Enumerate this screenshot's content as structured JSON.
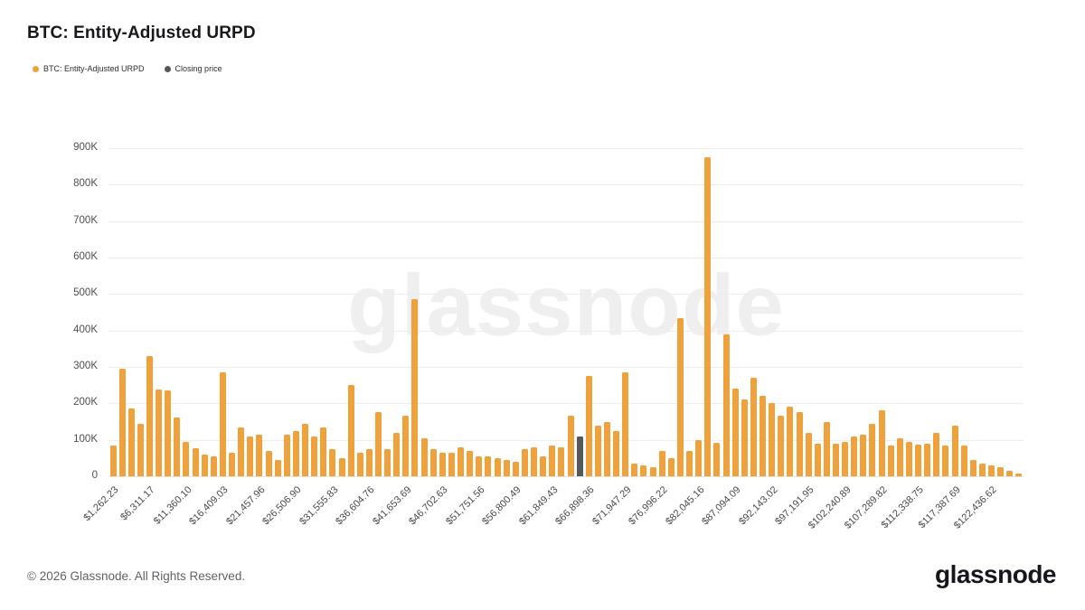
{
  "page": {
    "title": "BTC: Entity-Adjusted URPD",
    "watermark": "glassnode",
    "footer_copyright": "© 2026 Glassnode. All Rights Reserved.",
    "brand_logo_text": "glassnode"
  },
  "legend": [
    {
      "label": "BTC: Entity-Adjusted URPD",
      "color": "#EFA23C"
    },
    {
      "label": "Closing price",
      "color": "#55585c"
    }
  ],
  "colors": {
    "bar_orange": "#EFA23C",
    "closing_price_bar": "#55585c",
    "gridline": "#ededed",
    "axis_text": "#4a4a4a"
  },
  "chart_data": {
    "type": "bar",
    "title": "BTC: Entity-Adjusted URPD",
    "xlabel": "",
    "ylabel": "",
    "ylim": [
      0,
      900000
    ],
    "grid": true,
    "legend_position": "top-left",
    "ymax_k": 900,
    "y_ticks": [
      "0",
      "100K",
      "200K",
      "300K",
      "400K",
      "500K",
      "600K",
      "700K",
      "800K",
      "900K"
    ],
    "y_tick_values_k": [
      0,
      100,
      200,
      300,
      400,
      500,
      600,
      700,
      800,
      900
    ],
    "x_tick_labels": [
      "$1,262.23",
      "$6,311.17",
      "$11,360.10",
      "$16,409.03",
      "$21,457.96",
      "$26,506.90",
      "$31,555.83",
      "$36,604.76",
      "$41,653.69",
      "$46,702.63",
      "$51,751.56",
      "$56,800.49",
      "$61,849.43",
      "$66,898.36",
      "$71,947.29",
      "$76,996.22",
      "$82,045.16",
      "$87,094.09",
      "$92,143.02",
      "$97,191.95",
      "$102,240.89",
      "$107,289.82",
      "$112,338.75",
      "$117,387.69",
      "$122,436.62"
    ],
    "x_tick_every": 4,
    "values_k": [
      85,
      295,
      185,
      145,
      330,
      238,
      235,
      160,
      95,
      78,
      60,
      55,
      285,
      65,
      135,
      110,
      115,
      70,
      45,
      115,
      125,
      145,
      110,
      135,
      75,
      50,
      250,
      65,
      75,
      175,
      75,
      120,
      165,
      485,
      105,
      75,
      65,
      65,
      80,
      70,
      55,
      55,
      50,
      45,
      40,
      75,
      80,
      55,
      85,
      80,
      165,
      110,
      275,
      140,
      150,
      125,
      285,
      35,
      30,
      25,
      70,
      50,
      435,
      70,
      100,
      875,
      92,
      390,
      240,
      210,
      270,
      220,
      200,
      165,
      190,
      175,
      120,
      90,
      150,
      90,
      95,
      110,
      115,
      145,
      180,
      85,
      105,
      95,
      88,
      90,
      120,
      85,
      140,
      85,
      45,
      35,
      30,
      25,
      15,
      8
    ],
    "closing_price_index": 51,
    "series": [
      {
        "name": "BTC: Entity-Adjusted URPD",
        "color": "#EFA23C"
      },
      {
        "name": "Closing price",
        "color": "#55585c"
      }
    ]
  }
}
